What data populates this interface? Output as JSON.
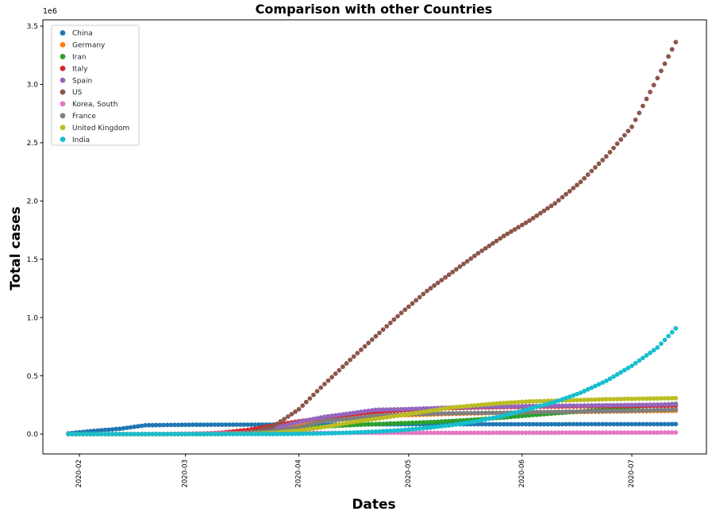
{
  "chart_data": {
    "type": "scatter",
    "title": "Comparison with other Countries",
    "xlabel": "Dates",
    "ylabel": "Total cases",
    "offset_label": "1e6",
    "grid": false,
    "legend_position": "upper-left",
    "marker": "circle",
    "ytick_values": [
      0.0,
      0.5,
      1.0,
      1.5,
      2.0,
      2.5,
      3.0,
      3.5
    ],
    "ytick_labels": [
      "0.0",
      "0.5",
      "1.0",
      "1.5",
      "2.0",
      "2.5",
      "3.0",
      "3.5"
    ],
    "ylim_millions": [
      -0.17,
      3.57
    ],
    "xtick_labels": [
      "2020-02",
      "2020-03",
      "2020-04",
      "2020-05",
      "2020-06",
      "2020-07"
    ],
    "xtick_days": [
      3,
      32,
      63,
      93,
      124,
      154
    ],
    "anchor_dates": [
      "2020-01-29",
      "2020-02-05",
      "2020-02-12",
      "2020-02-19",
      "2020-02-26",
      "2020-03-04",
      "2020-03-11",
      "2020-03-18",
      "2020-03-25",
      "2020-04-01",
      "2020-04-08",
      "2020-04-15",
      "2020-04-22",
      "2020-04-29",
      "2020-05-06",
      "2020-05-13",
      "2020-05-20",
      "2020-05-27",
      "2020-06-03",
      "2020-06-10",
      "2020-06-17",
      "2020-06-24",
      "2020-07-01",
      "2020-07-08",
      "2020-07-13"
    ],
    "anchor_days": [
      0,
      7,
      14,
      21,
      28,
      35,
      42,
      49,
      56,
      63,
      70,
      77,
      84,
      91,
      98,
      105,
      112,
      119,
      126,
      133,
      140,
      147,
      154,
      161,
      166
    ],
    "series": [
      {
        "name": "China",
        "color": "#1f77b4",
        "values": [
          6000,
          28000,
          45000,
          75500,
          78500,
          80500,
          80900,
          81200,
          81700,
          82400,
          82900,
          83400,
          83900,
          84000,
          84400,
          84500,
          84500,
          84500,
          84600,
          84700,
          84900,
          85100,
          85200,
          85300,
          85500
        ]
      },
      {
        "name": "Germany",
        "color": "#ff7f0e",
        "values": [
          10,
          12,
          16,
          16,
          30,
          300,
          1900,
          12300,
          37300,
          77900,
          113300,
          134800,
          150600,
          161500,
          167000,
          174100,
          177800,
          181900,
          184500,
          186500,
          189800,
          193200,
          195800,
          198100,
          200000
        ]
      },
      {
        "name": "Iran",
        "color": "#2ca02c",
        "values": [
          0,
          0,
          0,
          2,
          19,
          2900,
          9000,
          17400,
          27000,
          47600,
          64600,
          76400,
          85900,
          93700,
          101600,
          112700,
          126900,
          141600,
          160700,
          177900,
          195100,
          212500,
          230200,
          248400,
          259600
        ]
      },
      {
        "name": "Italy",
        "color": "#d62728",
        "values": [
          0,
          2,
          3,
          3,
          453,
          3089,
          12462,
          35713,
          74386,
          110574,
          139422,
          165155,
          187327,
          203591,
          214457,
          222104,
          227364,
          231139,
          233836,
          235763,
          237828,
          239410,
          240760,
          242149,
          243230
        ]
      },
      {
        "name": "Spain",
        "color": "#9467bd",
        "values": [
          0,
          1,
          2,
          2,
          13,
          222,
          2277,
          13910,
          49515,
          104118,
          148220,
          177644,
          208389,
          212917,
          220325,
          228691,
          232555,
          236259,
          240326,
          242707,
          244683,
          247086,
          249659,
          252513,
          255953
        ]
      },
      {
        "name": "US",
        "color": "#8c564b",
        "values": [
          5,
          12,
          13,
          15,
          59,
          158,
          1281,
          7786,
          65778,
          213372,
          429052,
          636350,
          839675,
          1039909,
          1228603,
          1390406,
          1551853,
          1699933,
          1831821,
          1979850,
          2163290,
          2382426,
          2636538,
          3054699,
          3363056
        ]
      },
      {
        "name": "Korea, South",
        "color": "#e377c2",
        "values": [
          4,
          19,
          28,
          51,
          1261,
          5621,
          7755,
          8413,
          9137,
          9887,
          10384,
          10591,
          10694,
          10761,
          10806,
          10962,
          11110,
          11344,
          11590,
          11902,
          12257,
          12563,
          12850,
          13244,
          13479
        ]
      },
      {
        "name": "France",
        "color": "#7f7f7f",
        "values": [
          5,
          6,
          11,
          12,
          18,
          288,
          2284,
          9124,
          25600,
          57749,
          112950,
          131363,
          157135,
          166976,
          174224,
          178184,
          181700,
          182847,
          188450,
          191313,
          194373,
          197183,
          199473,
          206334,
          208813
        ]
      },
      {
        "name": "United Kingdom",
        "color": "#bcbd22",
        "values": [
          0,
          2,
          8,
          9,
          13,
          86,
          459,
          2644,
          9640,
          29865,
          61474,
          99483,
          130184,
          162350,
          194990,
          229705,
          248818,
          267240,
          279856,
          286143,
          292600,
          298862,
          302654,
          306000,
          308000
        ]
      },
      {
        "name": "India",
        "color": "#17becf",
        "values": [
          1,
          3,
          3,
          3,
          3,
          29,
          62,
          156,
          657,
          1998,
          5916,
          12370,
          21370,
          33062,
          52987,
          78055,
          112028,
          158086,
          216824,
          276146,
          354161,
          456183,
          585481,
          742417,
          906752
        ]
      }
    ]
  }
}
